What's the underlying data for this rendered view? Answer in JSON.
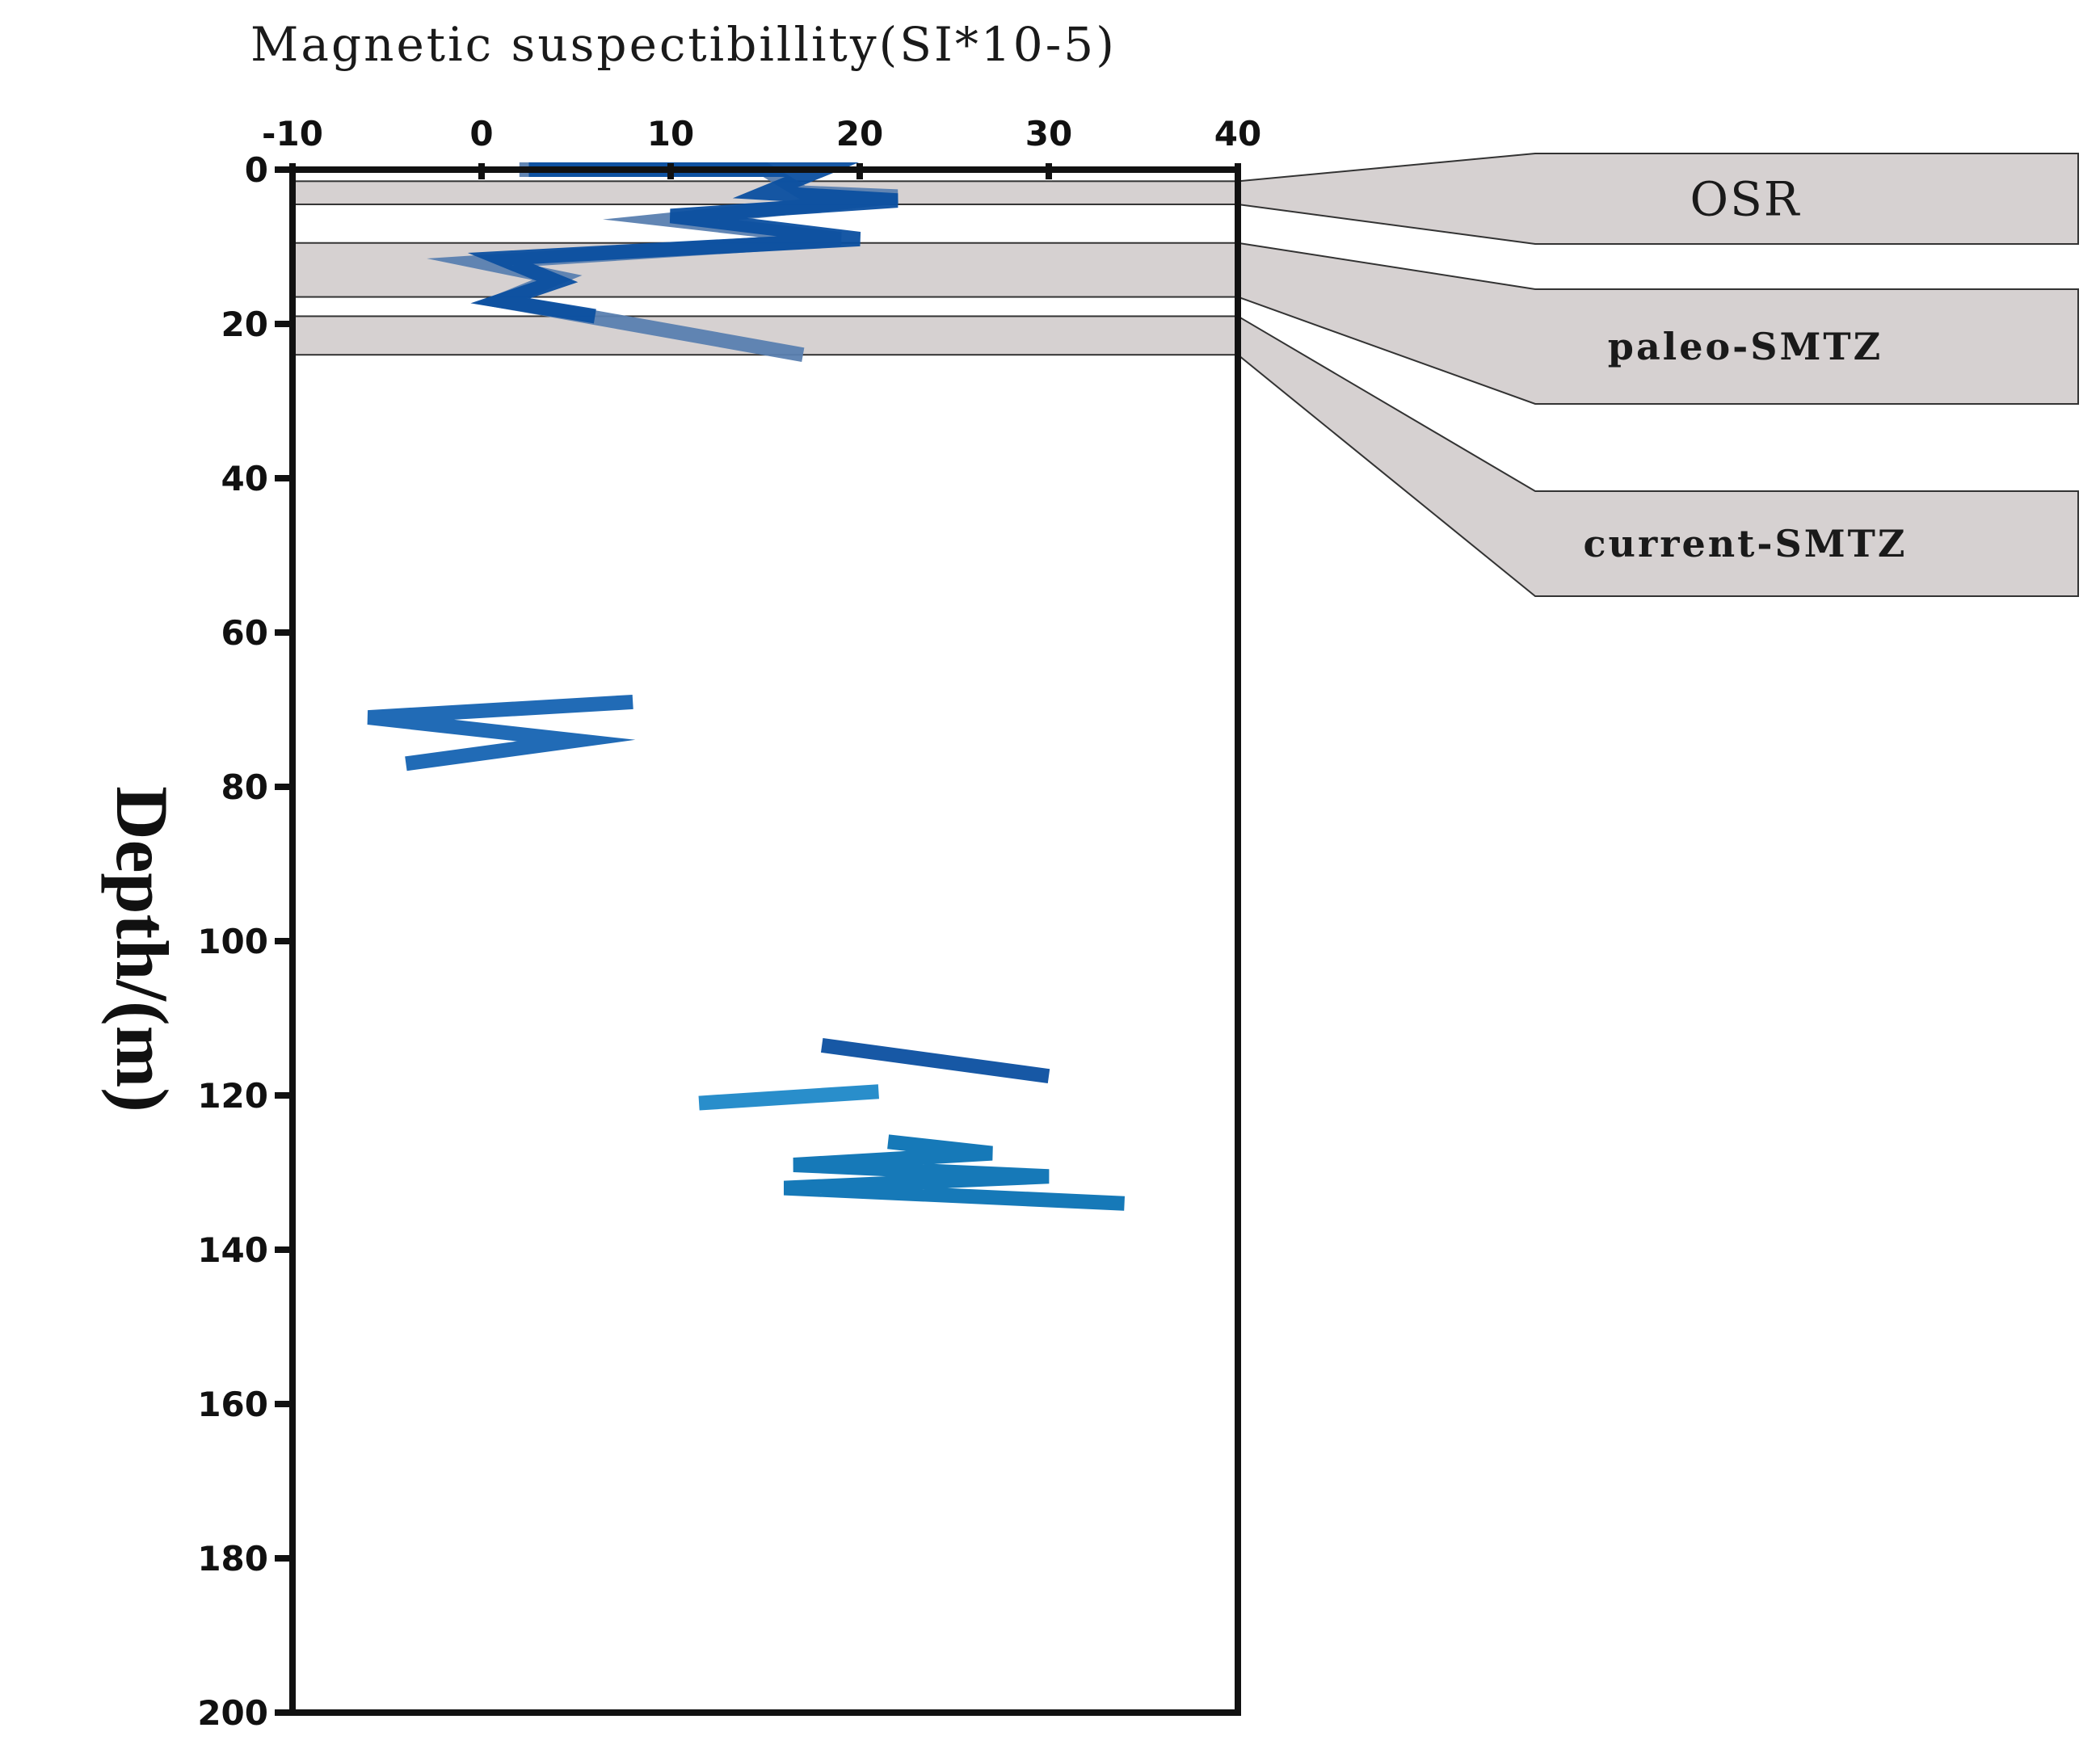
{
  "chart_data": {
    "type": "line",
    "xlabel": "Magnetic suspectibillity(SI*10-5)",
    "ylabel": "Depth/(m)",
    "xlim": [
      -10,
      40
    ],
    "ylim": [
      0,
      200
    ],
    "y_inverted": true,
    "x_ticks": [
      -10,
      0,
      10,
      20,
      30,
      40
    ],
    "y_ticks": [
      0,
      20,
      40,
      60,
      80,
      100,
      120,
      140,
      160,
      180,
      200
    ],
    "x_tick_labels": [
      "-10",
      "0",
      "10",
      "20",
      "30",
      "40"
    ],
    "y_tick_labels": [
      "0",
      "20",
      "40",
      "60",
      "80",
      "100",
      "120",
      "140",
      "160",
      "180",
      "200"
    ],
    "colors": {
      "blue_dark": "#0b4fa0",
      "blue_mid": "#1563b2",
      "blue_light": "#1e88c8",
      "blue_gray": "#5a7fb0",
      "band_fill": "#d6d1d1",
      "axis": "#111111"
    },
    "zones": [
      {
        "label": "OSR",
        "depth_top": 1.5,
        "depth_bottom": 4.5,
        "color": "#d6d1d1"
      },
      {
        "label": "paleo-SMTZ",
        "depth_top": 9.5,
        "depth_bottom": 16.5,
        "color": "#d6d1d1"
      },
      {
        "label": "current-SMTZ",
        "depth_top": 19,
        "depth_bottom": 24,
        "color": "#d6d1d1"
      }
    ],
    "series": [
      {
        "color": "#5a7fb0",
        "points": [
          {
            "x": 2,
            "y": 0
          },
          {
            "x": 15,
            "y": 0
          },
          {
            "x": 17,
            "y": 3
          },
          {
            "x": 22,
            "y": 3.5
          },
          {
            "x": 10,
            "y": 6.5
          },
          {
            "x": 19,
            "y": 9
          },
          {
            "x": 0,
            "y": 12
          },
          {
            "x": 4,
            "y": 14
          },
          {
            "x": 1,
            "y": 17
          },
          {
            "x": 17,
            "y": 24
          }
        ]
      },
      {
        "color": "#0b4fa0",
        "points": [
          {
            "x": 2.5,
            "y": 0
          },
          {
            "x": 18,
            "y": 0
          },
          {
            "x": 15,
            "y": 3
          },
          {
            "x": 22,
            "y": 4
          },
          {
            "x": 10,
            "y": 6
          },
          {
            "x": 20,
            "y": 9
          },
          {
            "x": 1,
            "y": 11.5
          },
          {
            "x": 4,
            "y": 14.5
          },
          {
            "x": 1,
            "y": 17
          },
          {
            "x": 6,
            "y": 19
          }
        ]
      },
      {
        "color": "#1563b2",
        "points": [
          {
            "x": 8,
            "y": 69
          },
          {
            "x": -6,
            "y": 71
          },
          {
            "x": 5,
            "y": 74
          },
          {
            "x": -4,
            "y": 77
          }
        ]
      },
      {
        "color": "#0b4fa0",
        "points": [
          {
            "x": 18,
            "y": 113.5
          },
          {
            "x": 30,
            "y": 117.5
          }
        ]
      },
      {
        "color": "#1e88c8",
        "points": [
          {
            "x": 11.5,
            "y": 121
          },
          {
            "x": 21,
            "y": 119.5
          }
        ]
      },
      {
        "color": "#0a72b4",
        "points": [
          {
            "x": 21.5,
            "y": 126
          },
          {
            "x": 27,
            "y": 127.5
          },
          {
            "x": 16.5,
            "y": 129
          },
          {
            "x": 30,
            "y": 130.5
          },
          {
            "x": 16,
            "y": 132
          },
          {
            "x": 34,
            "y": 134
          }
        ]
      }
    ]
  }
}
